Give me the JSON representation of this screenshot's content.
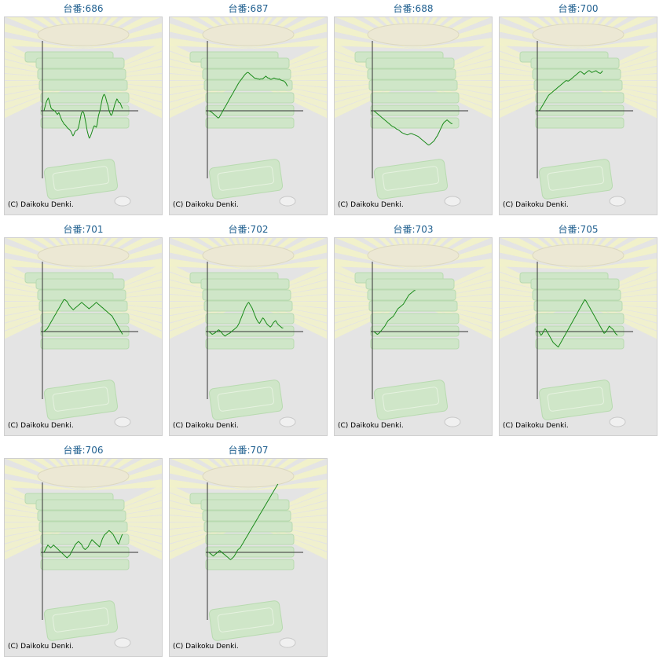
{
  "colors": {
    "title": "#1f5f8f",
    "line": "#1a8a1a",
    "axis": "#333333",
    "background": "#e4e4e4"
  },
  "copyright": "(C) Daikoku Denki.",
  "chart_data": [
    {
      "type": "line",
      "title": "台番:686",
      "values": [
        0,
        6,
        12,
        18,
        22,
        25,
        28,
        24,
        18,
        12,
        6,
        4,
        3,
        2,
        1,
        0,
        -2,
        -4,
        -6,
        -8,
        -6,
        -4,
        -8,
        -12,
        -16,
        -20,
        -23,
        -25,
        -28,
        -30,
        -31,
        -33,
        -35,
        -37,
        -39,
        -40,
        -41,
        -43,
        -45,
        -48,
        -52,
        -55,
        -53,
        -49,
        -45,
        -44,
        -43,
        -42,
        -40,
        -35,
        -28,
        -20,
        -12,
        -5,
        -3,
        -2,
        -4,
        -10,
        -18,
        -26,
        -35,
        -44,
        -50,
        -56,
        -60,
        -58,
        -54,
        -50,
        -45,
        -40,
        -36,
        -33,
        -34,
        -35,
        -36,
        -30,
        -20,
        -10,
        -5,
        0,
        8,
        16,
        24,
        30,
        34,
        36,
        34,
        30,
        24,
        18,
        14,
        8,
        0,
        -4,
        -8,
        -10,
        -8,
        -4,
        2,
        8,
        14,
        18,
        22,
        26,
        24,
        20,
        18,
        18,
        16,
        12,
        8,
        5
      ]
    },
    {
      "type": "line",
      "title": "台番:687",
      "values": [
        0,
        -1,
        -2,
        -4,
        -6,
        -8,
        -10,
        -12,
        -14,
        -16,
        -14,
        -10,
        -6,
        -2,
        2,
        6,
        10,
        14,
        18,
        22,
        26,
        30,
        34,
        38,
        42,
        46,
        50,
        54,
        58,
        62,
        65,
        68,
        71,
        74,
        77,
        80,
        82,
        84,
        84,
        82,
        80,
        78,
        76,
        74,
        72,
        71,
        71,
        70,
        70,
        69,
        70,
        70,
        70,
        72,
        74,
        76,
        74,
        72,
        72,
        70,
        69,
        70,
        71,
        72,
        71,
        70,
        70,
        69,
        70,
        68,
        67,
        66,
        66,
        64,
        62,
        58,
        54
      ]
    },
    {
      "type": "line",
      "title": "台番:688",
      "values": [
        0,
        -2,
        -4,
        -6,
        -8,
        -10,
        -12,
        -14,
        -16,
        -18,
        -20,
        -22,
        -24,
        -26,
        -28,
        -30,
        -32,
        -34,
        -35,
        -36,
        -38,
        -40,
        -41,
        -42,
        -44,
        -46,
        -48,
        -49,
        -50,
        -51,
        -52,
        -53,
        -52,
        -51,
        -50,
        -50,
        -51,
        -52,
        -53,
        -54,
        -55,
        -56,
        -58,
        -60,
        -62,
        -64,
        -66,
        -68,
        -70,
        -72,
        -74,
        -75,
        -74,
        -72,
        -70,
        -68,
        -66,
        -62,
        -58,
        -55,
        -50,
        -45,
        -40,
        -35,
        -30,
        -26,
        -24,
        -22,
        -20,
        -22,
        -24,
        -26,
        -28,
        -28
      ]
    },
    {
      "type": "line",
      "title": "台番:700",
      "values": [
        0,
        2,
        6,
        10,
        14,
        18,
        22,
        26,
        30,
        34,
        36,
        38,
        40,
        42,
        44,
        46,
        48,
        50,
        52,
        54,
        56,
        58,
        60,
        62,
        64,
        66,
        66,
        65,
        66,
        68,
        70,
        72,
        74,
        76,
        78,
        80,
        82,
        84,
        86,
        86,
        84,
        82,
        80,
        82,
        84,
        86,
        88,
        88,
        86,
        84,
        85,
        86,
        87,
        88,
        86,
        84,
        83,
        82,
        84,
        88
      ]
    },
    {
      "type": "line",
      "title": "台番:701",
      "values": [
        0,
        2,
        4,
        6,
        10,
        14,
        18,
        22,
        26,
        30,
        34,
        38,
        42,
        46,
        50,
        54,
        58,
        62,
        66,
        70,
        70,
        68,
        66,
        62,
        58,
        55,
        52,
        50,
        48,
        50,
        52,
        54,
        56,
        58,
        60,
        62,
        64,
        62,
        60,
        58,
        56,
        54,
        52,
        50,
        52,
        54,
        56,
        58,
        60,
        62,
        64,
        62,
        60,
        58,
        56,
        54,
        52,
        50,
        48,
        46,
        44,
        42,
        40,
        38,
        36,
        34,
        30,
        26,
        22,
        18,
        14,
        10,
        6,
        2,
        -2,
        -6
      ]
    },
    {
      "type": "line",
      "title": "台番:702",
      "values": [
        0,
        -2,
        -4,
        -6,
        -5,
        -4,
        -2,
        0,
        2,
        4,
        2,
        0,
        -3,
        -6,
        -8,
        -10,
        -8,
        -6,
        -5,
        -4,
        -2,
        0,
        2,
        4,
        6,
        8,
        10,
        14,
        18,
        24,
        30,
        36,
        42,
        48,
        54,
        58,
        62,
        64,
        60,
        56,
        52,
        46,
        40,
        34,
        28,
        24,
        20,
        18,
        22,
        26,
        30,
        28,
        24,
        20,
        16,
        14,
        12,
        10,
        12,
        16,
        20,
        22,
        24,
        20,
        16,
        14,
        12,
        10,
        8,
        8
      ]
    },
    {
      "type": "line",
      "title": "台番:703",
      "values": [
        0,
        -2,
        -4,
        -6,
        -5,
        -3,
        0,
        3,
        6,
        9,
        12,
        16,
        20,
        24,
        26,
        28,
        30,
        32,
        34,
        38,
        42,
        46,
        50,
        52,
        54,
        56,
        58,
        60,
        64,
        68,
        72,
        76,
        80,
        82,
        84,
        86,
        88,
        90,
        90
      ]
    },
    {
      "type": "line",
      "title": "台番:705",
      "values": [
        0,
        -4,
        -8,
        -6,
        -2,
        2,
        6,
        4,
        0,
        -4,
        -8,
        -12,
        -16,
        -20,
        -24,
        -26,
        -28,
        -30,
        -32,
        -34,
        -30,
        -26,
        -22,
        -18,
        -14,
        -10,
        -6,
        -2,
        2,
        6,
        10,
        14,
        18,
        22,
        26,
        30,
        34,
        38,
        42,
        46,
        50,
        54,
        58,
        62,
        66,
        70,
        68,
        64,
        60,
        56,
        52,
        48,
        44,
        40,
        36,
        32,
        28,
        24,
        20,
        16,
        12,
        8,
        4,
        0,
        -4,
        -2,
        0,
        4,
        8,
        12,
        10,
        8,
        6,
        4,
        0,
        -4,
        -6,
        -8
      ]
    },
    {
      "type": "line",
      "title": "台番:706",
      "values": [
        0,
        4,
        8,
        12,
        16,
        14,
        12,
        10,
        12,
        14,
        16,
        14,
        12,
        10,
        8,
        6,
        4,
        2,
        0,
        -2,
        -4,
        -6,
        -8,
        -10,
        -12,
        -10,
        -8,
        -6,
        -2,
        2,
        6,
        10,
        14,
        18,
        20,
        22,
        24,
        22,
        20,
        18,
        14,
        10,
        8,
        6,
        8,
        10,
        12,
        16,
        20,
        24,
        28,
        26,
        24,
        22,
        20,
        18,
        16,
        14,
        12,
        18,
        24,
        30,
        34,
        38,
        40,
        42,
        44,
        46,
        48,
        46,
        44,
        42,
        40,
        36,
        32,
        28,
        24,
        20,
        18,
        24,
        30,
        36,
        40
      ]
    },
    {
      "type": "line",
      "title": "台番:707",
      "values": [
        0,
        -2,
        -4,
        -6,
        -8,
        -6,
        -4,
        -2,
        0,
        2,
        4,
        2,
        0,
        -2,
        -4,
        -6,
        -8,
        -10,
        -12,
        -14,
        -16,
        -14,
        -12,
        -10,
        -6,
        -2,
        2,
        6,
        8,
        10,
        14,
        18,
        22,
        26,
        30,
        34,
        38,
        42,
        46,
        50,
        54,
        58,
        62,
        66,
        70,
        74,
        78,
        82,
        86,
        90,
        94,
        98,
        102,
        106,
        110,
        114,
        118,
        122,
        126,
        130,
        134,
        138,
        142,
        146,
        150
      ]
    }
  ]
}
